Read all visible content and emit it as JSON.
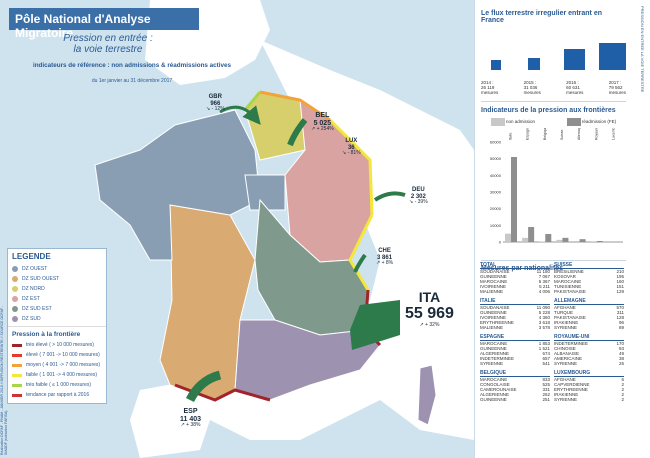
{
  "header": {
    "title": "Pôle National d'Analyse Migratoire",
    "sub1": "Pression en entrée :",
    "sub2": "la voie terrestre",
    "indicators": "indicateurs de référence : non admissions & réadmissions actives",
    "period": "du 1er janvier au 31 décembre 2017"
  },
  "legend": {
    "title": "LEGENDE",
    "zones": [
      {
        "label": "DZ OUEST",
        "color": "#8a9eb3"
      },
      {
        "label": "DZ SUD OUEST",
        "color": "#d9aa72"
      },
      {
        "label": "DZ NORD",
        "color": "#d6cf6c"
      },
      {
        "label": "DZ EST",
        "color": "#d9a3a1"
      },
      {
        "label": "DZ SUD EST",
        "color": "#7f9a8c"
      },
      {
        "label": "DZ SUD",
        "color": "#9d92b0"
      }
    ],
    "pressure_title": "Pression à la frontière",
    "levels": [
      {
        "label": "très élevé",
        "sub": "( > 10 000 mesures)",
        "color": "#a0242a"
      },
      {
        "label": "élevé",
        "sub": "( 7 001 -> 10 000 mesures)",
        "color": "#e53b2c"
      },
      {
        "label": "moyen",
        "sub": "( 4 001 -> 7 000 mesures)",
        "color": "#f3a23a"
      },
      {
        "label": "faible",
        "sub": "( 1 001 -> 4 000 mesures)",
        "color": "#f5e63a"
      },
      {
        "label": "très faible",
        "sub": "( ≤ 1 000 mesures)",
        "color": "#a8d64a"
      }
    ],
    "trend_label": "tendance par rapport à 2016"
  },
  "points": [
    {
      "id": "gbr",
      "name": "GBR",
      "value": "966",
      "trend": "↘ - 12%"
    },
    {
      "id": "bel",
      "name": "BEL",
      "value": "5 025",
      "trend": "↗ + 254%"
    },
    {
      "id": "lux",
      "name": "LUX",
      "value": "36",
      "trend": "↘ - 81%"
    },
    {
      "id": "deu",
      "name": "DEU",
      "value": "2 302",
      "trend": "↘ - 39%"
    },
    {
      "id": "che",
      "name": "CHE",
      "value": "3 861",
      "trend": "↗ + 8%"
    },
    {
      "id": "ita",
      "name": "ITA",
      "value": "55 969",
      "trend": "↗ + 32%"
    },
    {
      "id": "esp",
      "name": "ESP",
      "value": "11 403",
      "trend": "↗ + 38%"
    }
  ],
  "flux": {
    "title": "Le flux terrestre irregulier entrant en France",
    "years": [
      {
        "label": "2014 :",
        "value": "26 119",
        "unit": "mesures"
      },
      {
        "label": "2015 :",
        "value": "31 036",
        "unit": "mesures"
      },
      {
        "label": "2016 :",
        "value": "60 631",
        "unit": "mesures"
      },
      {
        "label": "2017 :",
        "value": "79 562",
        "unit": "mesures"
      }
    ]
  },
  "pressure_chart": {
    "title": "Indicateurs de la pression aux frontières",
    "legend_non_admission": "non admission",
    "legend_readmission": "réadmission (FE)",
    "color_non": "#c8c8c8",
    "color_re": "#8f8f8f"
  },
  "chart_data": {
    "type": "bar",
    "categories": [
      "Italie",
      "Espagne",
      "Belgique",
      "Suisse",
      "Allemagne",
      "Royaume-Uni",
      "Luxembourg"
    ],
    "series": [
      {
        "name": "non admission",
        "values": [
          5000,
          2500,
          300,
          1300,
          600,
          400,
          10
        ]
      },
      {
        "name": "réadmission (FE)",
        "values": [
          51000,
          9000,
          4800,
          2500,
          1700,
          600,
          30
        ]
      }
    ],
    "ylim": [
      0,
      60000
    ],
    "yticks": [
      "60000",
      "50000",
      "40000",
      "30000",
      "20000",
      "10000",
      "0"
    ]
  },
  "nationalities": {
    "title": "Mesures par nationalités",
    "blocks": [
      {
        "country": "TOTAL",
        "rows": [
          [
            "SOUDANAISE",
            "11 180"
          ],
          [
            "GUINEENNE",
            "7 067"
          ],
          [
            "MAROCAINE",
            "5 367"
          ],
          [
            "IVOIRIENNE",
            "5 211"
          ],
          [
            "MALIENNE",
            "4 006"
          ]
        ]
      },
      {
        "country": "SUISSE",
        "rows": [
          [
            "BRESILIENNE",
            "210"
          ],
          [
            "KOSOVAR",
            "195"
          ],
          [
            "MAROCAINE",
            "160"
          ],
          [
            "TUNISIENNE",
            "151"
          ],
          [
            "PAKISTANAISE",
            "129"
          ]
        ]
      },
      {
        "country": "ITALIE",
        "rows": [
          [
            "SOUDANAISE",
            "11 090"
          ],
          [
            "GUINEENNE",
            "5 228"
          ],
          [
            "IVOIRIENNE",
            "4 360"
          ],
          [
            "ERYTHREENNE",
            "3 618"
          ],
          [
            "MALIENNE",
            "3 578"
          ]
        ]
      },
      {
        "country": "ALLEMAGNE",
        "rows": [
          [
            "AFGHANE",
            "570"
          ],
          [
            "TURQUE",
            "311"
          ],
          [
            "PAKISTANAISE",
            "128"
          ],
          [
            "IRAKIENNE",
            "96"
          ],
          [
            "SYRIENNE",
            "89"
          ]
        ]
      },
      {
        "country": "ESPAGNE",
        "rows": [
          [
            "MAROCAINE",
            "1 853"
          ],
          [
            "GUINEENNE",
            "1 521"
          ],
          [
            "ALGERIENNE",
            "674"
          ],
          [
            "INDETERMINEE",
            "657"
          ],
          [
            "SYRIENNE",
            "541"
          ]
        ]
      },
      {
        "country": "ROYAUME-UNI",
        "rows": [
          [
            "INDETERMINEE",
            "170"
          ],
          [
            "CHINOISE",
            "93"
          ],
          [
            "ALBANAISE",
            "49"
          ],
          [
            "AMERICAINE",
            "38"
          ],
          [
            "SYRIENNE",
            "25"
          ]
        ]
      },
      {
        "country": "BELGIQUE",
        "rows": [
          [
            "MAROCAINE",
            "833"
          ],
          [
            "CONGOLAISE",
            "525"
          ],
          [
            "CAMEROUNAISE",
            "331"
          ],
          [
            "ALGERIENNE",
            "262"
          ],
          [
            "GUINEENNE",
            "251"
          ]
        ]
      },
      {
        "country": "LUXEMBOURG",
        "rows": [
          [
            "AFGHANE",
            "6"
          ],
          [
            "CAPVERDIENNE",
            "2"
          ],
          [
            "ERYTHREENNE",
            "2"
          ],
          [
            "IRAKIENNE",
            "2"
          ],
          [
            "SYRIENNE",
            "2"
          ]
        ]
      }
    ]
  },
  "side_text": "PRESSION EN ENTREE LA VOIE TERRESTRE",
  "credits": "Réalisation DCPAF - PNAM - JANVIER 2018 // DIFFUSION RESTREINTE // SOURCE DCPAF - SIADDF (extraction PAFISA)"
}
